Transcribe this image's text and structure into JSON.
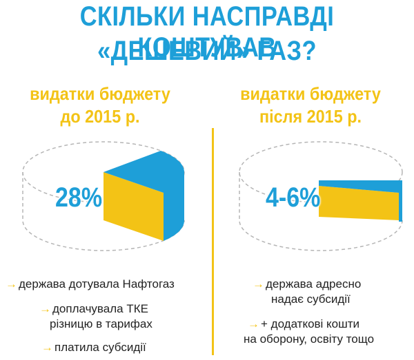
{
  "title": {
    "line1": "СКІЛЬКИ НАСПРАВДІ КОШТУВАВ",
    "line2": "«ДЕШЕВИЙ» ГАЗ?"
  },
  "left": {
    "heading_line1": "видатки бюджету",
    "heading_line2": "до 2015 р.",
    "percent_label": "28%",
    "share": 0.28,
    "bullets": [
      {
        "arrow": "→",
        "text": "держава дотувала Нафтогаз"
      },
      {
        "arrow": "→",
        "text": "доплачувала ТКЕ"
      },
      {
        "arrow": "",
        "text": "різницю в тарифах"
      },
      {
        "arrow": "→",
        "text": "платила субсидії"
      }
    ]
  },
  "right": {
    "heading_line1": "видатки бюджету",
    "heading_line2": "після  2015 р.",
    "percent_label": "4-6%",
    "share": 0.05,
    "bullets": [
      {
        "arrow": "→",
        "text": "держава адресно"
      },
      {
        "arrow": "",
        "text": "надає субсидії"
      },
      {
        "arrow": "→",
        "text": "+ додаткові кошти"
      },
      {
        "arrow": "",
        "text": "на оборону, освіту тощо"
      }
    ]
  },
  "colors": {
    "blue": "#1e9fd8",
    "yellow": "#f3c316",
    "outline": "#b5b5b5"
  }
}
